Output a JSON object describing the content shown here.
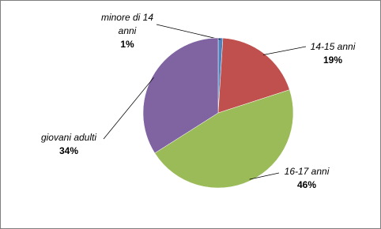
{
  "chart_data": {
    "type": "pie",
    "categories": [
      "minore di 14 anni",
      "14-15 anni",
      "16-17 anni",
      "giovani adulti"
    ],
    "values": [
      1,
      19,
      46,
      34
    ],
    "value_labels": [
      "1%",
      "19%",
      "46%",
      "34%"
    ],
    "colors": [
      "#4f81bd",
      "#c0504d",
      "#9bbb59",
      "#8064a2"
    ]
  }
}
